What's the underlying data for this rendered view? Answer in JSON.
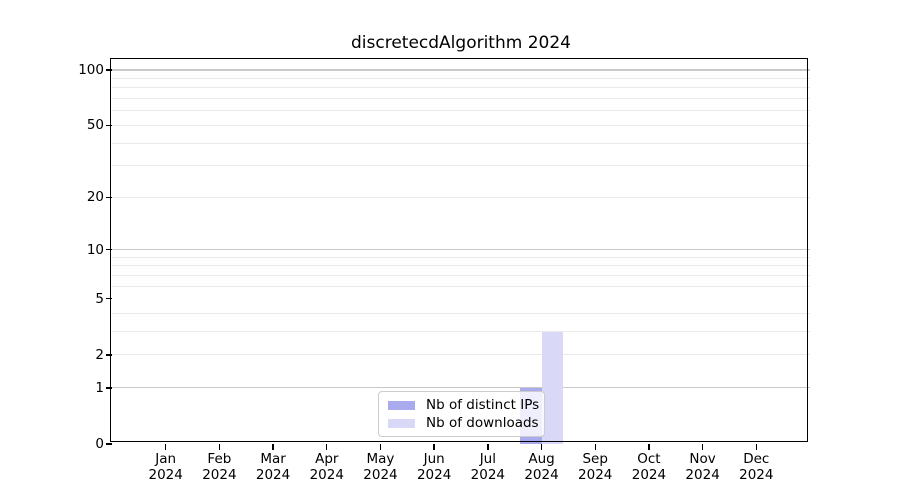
{
  "chart_data": {
    "type": "bar",
    "title": "discretecdAlgorithm 2024",
    "xlabel": "",
    "ylabel": "",
    "yscale": "log1p",
    "ylim": [
      0,
      113.3
    ],
    "yticks": [
      0,
      1,
      2,
      5,
      10,
      20,
      50,
      100
    ],
    "major_gridlines": [
      1,
      10,
      100
    ],
    "minor_gridlines": [
      2,
      3,
      4,
      6,
      7,
      8,
      9,
      20,
      30,
      40,
      50,
      60,
      70,
      80,
      90
    ],
    "grid": "horizontal",
    "legend_position": "lower center",
    "categories": [
      {
        "month": "Jan",
        "year": "2024"
      },
      {
        "month": "Feb",
        "year": "2024"
      },
      {
        "month": "Mar",
        "year": "2024"
      },
      {
        "month": "Apr",
        "year": "2024"
      },
      {
        "month": "May",
        "year": "2024"
      },
      {
        "month": "Jun",
        "year": "2024"
      },
      {
        "month": "Jul",
        "year": "2024"
      },
      {
        "month": "Aug",
        "year": "2024"
      },
      {
        "month": "Sep",
        "year": "2024"
      },
      {
        "month": "Oct",
        "year": "2024"
      },
      {
        "month": "Nov",
        "year": "2024"
      },
      {
        "month": "Dec",
        "year": "2024"
      }
    ],
    "series": [
      {
        "name": "Nb of distinct IPs",
        "color": "#aaaaee",
        "values": [
          0,
          0,
          0,
          0,
          0,
          0,
          0,
          1,
          0,
          0,
          0,
          0
        ]
      },
      {
        "name": "Nb of downloads",
        "color": "#d9d9f7",
        "values": [
          0,
          0,
          0,
          0,
          0,
          0,
          0,
          3,
          0,
          0,
          0,
          0
        ]
      }
    ]
  }
}
